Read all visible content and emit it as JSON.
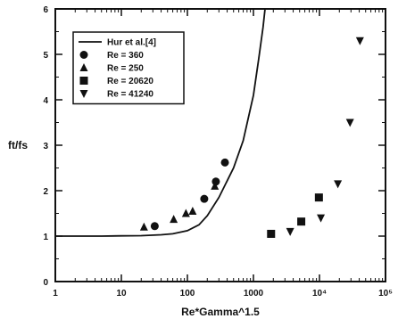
{
  "chart_data": {
    "type": "scatter",
    "xlabel": "Re*Gamma^1.5",
    "ylabel": "ft/fs",
    "xscale": "log",
    "xlim": [
      1,
      100000
    ],
    "ylim": [
      0,
      6
    ],
    "x_ticks": [
      {
        "value": 1,
        "label": "1"
      },
      {
        "value": 10,
        "label": "10"
      },
      {
        "value": 100,
        "label": "100"
      },
      {
        "value": 1000,
        "label": "1000"
      },
      {
        "value": 10000,
        "label": "10⁴"
      },
      {
        "value": 100000,
        "label": "10⁵"
      }
    ],
    "y_ticks": [
      {
        "value": 0,
        "label": "0"
      },
      {
        "value": 1,
        "label": "1"
      },
      {
        "value": 2,
        "label": "2"
      },
      {
        "value": 3,
        "label": "3"
      },
      {
        "value": 4,
        "label": "4"
      },
      {
        "value": 5,
        "label": "5"
      },
      {
        "value": 6,
        "label": "6"
      }
    ],
    "grid": false,
    "legend_position": "top-left",
    "color": "#111111",
    "curve": {
      "name": "Hur et al.[4]",
      "points": [
        [
          1,
          1.0
        ],
        [
          5,
          1.0
        ],
        [
          10,
          1.005
        ],
        [
          20,
          1.01
        ],
        [
          40,
          1.03
        ],
        [
          60,
          1.05
        ],
        [
          100,
          1.12
        ],
        [
          150,
          1.25
        ],
        [
          200,
          1.45
        ],
        [
          300,
          1.85
        ],
        [
          500,
          2.5
        ],
        [
          700,
          3.1
        ],
        [
          1000,
          4.1
        ],
        [
          1200,
          4.9
        ],
        [
          1400,
          5.6
        ],
        [
          1500,
          6.0
        ]
      ]
    },
    "series": [
      {
        "name": "Re = 360",
        "marker": "circle",
        "points": [
          [
            32,
            1.22
          ],
          [
            180,
            1.82
          ],
          [
            270,
            2.2
          ],
          [
            370,
            2.62
          ]
        ]
      },
      {
        "name": "Re = 250",
        "marker": "triangle-up",
        "points": [
          [
            22,
            1.2
          ],
          [
            62,
            1.37
          ],
          [
            95,
            1.5
          ],
          [
            120,
            1.55
          ],
          [
            260,
            2.1
          ]
        ]
      },
      {
        "name": "Re = 20620",
        "marker": "square",
        "points": [
          [
            1850,
            1.05
          ],
          [
            5300,
            1.32
          ],
          [
            9800,
            1.85
          ]
        ]
      },
      {
        "name": "Re = 41240",
        "marker": "triangle-down",
        "points": [
          [
            3600,
            1.1
          ],
          [
            10500,
            1.4
          ],
          [
            19000,
            2.15
          ],
          [
            29000,
            3.5
          ],
          [
            41000,
            5.3
          ]
        ]
      }
    ]
  }
}
